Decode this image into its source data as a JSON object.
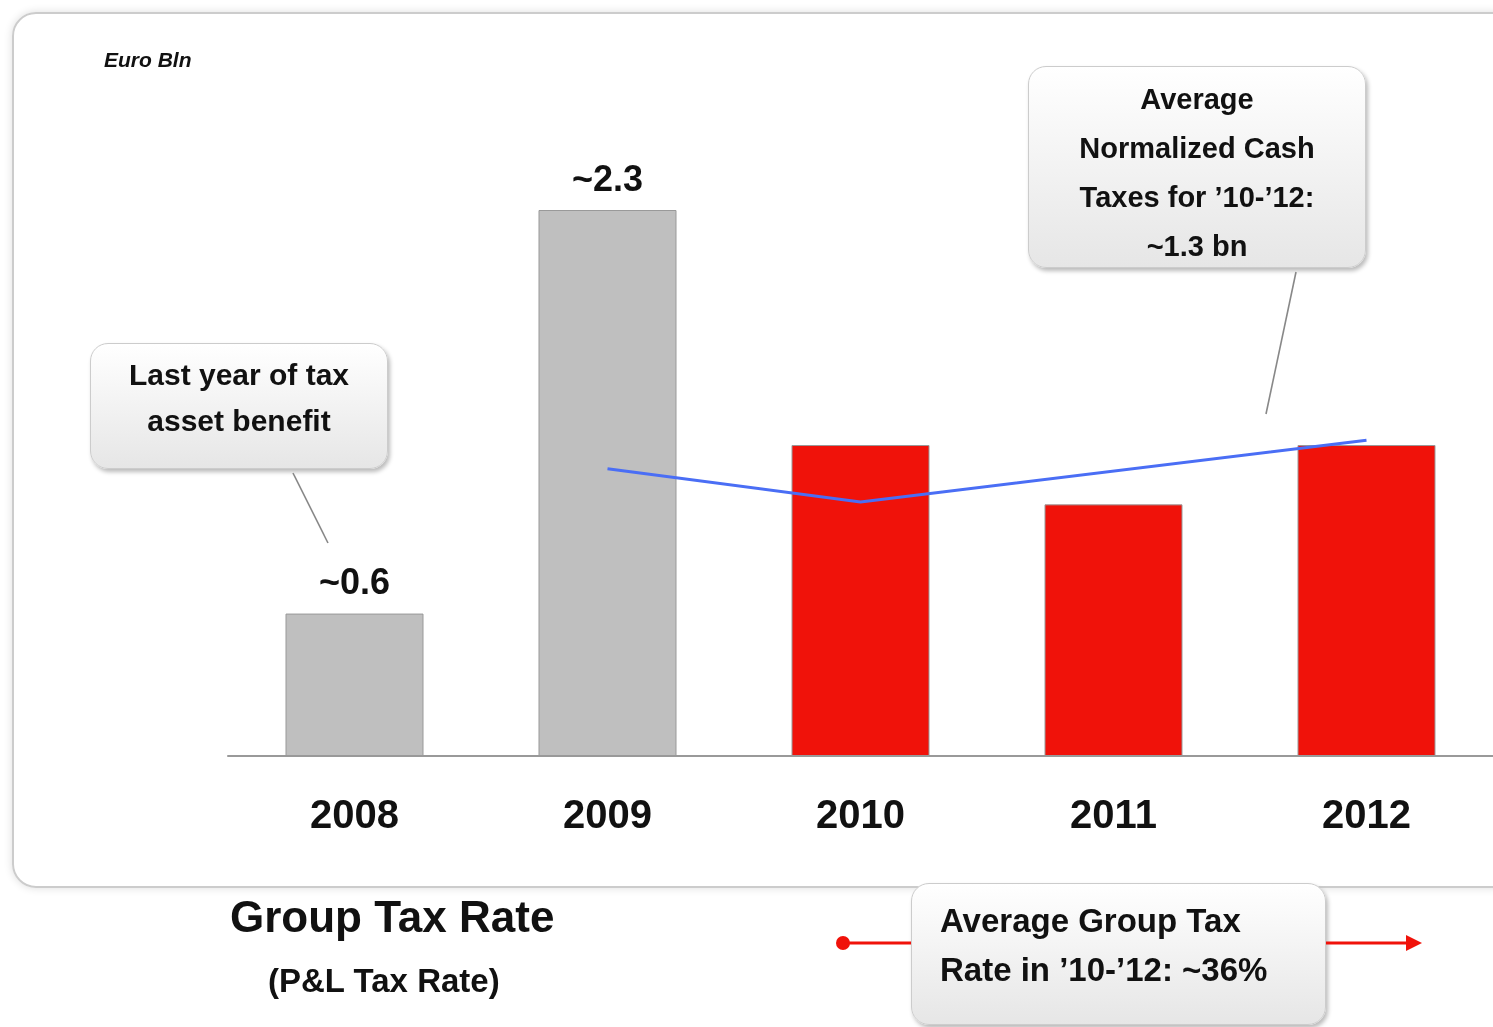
{
  "chart_data": {
    "type": "bar",
    "categories": [
      "2008",
      "2009",
      "2010",
      "2011",
      "2012"
    ],
    "values": [
      0.6,
      2.3,
      1.31,
      1.06,
      1.31
    ],
    "value_labels": [
      "~0.6",
      "~2.3",
      null,
      null,
      null
    ],
    "colors": [
      "#bfbfbf",
      "#bfbfbf",
      "#f0120a",
      "#f0120a",
      "#f0120a"
    ],
    "tick_labels": "x",
    "grid": false,
    "series": [
      {
        "type": "line",
        "color": "#4a6ef5",
        "values": [
          null,
          1.21,
          1.07,
          null,
          1.33
        ]
      }
    ],
    "annotations": [
      "Euro Bln",
      "Last year of tax asset benefit",
      "Average Normalized Cash Taxes for ’10-’12: ~1.3 bn",
      "Group Tax Rate",
      "(P&L Tax Rate)",
      "Average Group Tax Rate in ’10-’12: ~36%"
    ]
  }
}
